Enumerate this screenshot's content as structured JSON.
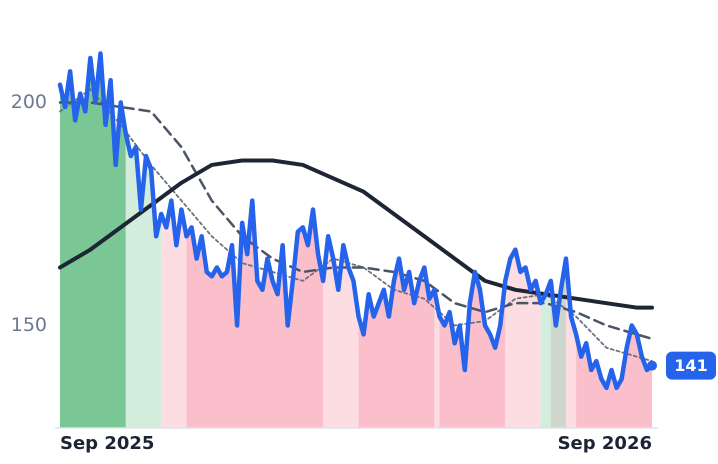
{
  "chart_data": {
    "type": "line",
    "x": [
      0,
      1,
      2,
      3,
      4,
      5,
      6,
      7,
      8,
      9,
      10,
      11,
      12,
      13,
      14,
      15,
      16,
      17,
      18,
      19,
      20,
      21,
      22,
      23,
      24,
      25,
      26,
      27,
      28,
      29,
      30,
      31,
      32,
      33,
      34,
      35,
      36,
      37,
      38,
      39,
      40,
      41,
      42,
      43,
      44,
      45,
      46,
      47,
      48,
      49,
      50,
      51,
      52,
      53,
      54,
      55,
      56,
      57,
      58,
      59,
      60,
      61,
      62,
      63,
      64,
      65,
      66,
      67,
      68,
      69,
      70,
      71,
      72,
      73,
      74,
      75,
      76,
      77,
      78,
      79,
      80,
      81,
      82,
      83,
      84,
      85,
      86,
      87,
      88,
      89,
      90,
      91,
      92,
      93,
      94,
      95,
      96,
      97,
      98,
      99,
      100,
      101,
      102,
      103,
      104,
      105,
      106,
      107,
      108,
      109,
      110,
      111,
      112,
      113,
      114,
      115,
      116,
      117
    ],
    "series": [
      {
        "color": "#2563eb",
        "style": "solid",
        "width": 4.5,
        "values": [
          204,
          199,
          207,
          196,
          202,
          198,
          210,
          200,
          211,
          195,
          205,
          186,
          200,
          193,
          188,
          190,
          176,
          188,
          185,
          170,
          175,
          172,
          178,
          168,
          176,
          170,
          172,
          165,
          170,
          162,
          161,
          163,
          161,
          162,
          168,
          150,
          173,
          166,
          178,
          160,
          158,
          165,
          160,
          157,
          168,
          150,
          160,
          171,
          172,
          168,
          176,
          166,
          160,
          170,
          165,
          158,
          168,
          163,
          160,
          152,
          148,
          157,
          152,
          155,
          158,
          152,
          160,
          165,
          158,
          162,
          155,
          160,
          163,
          156,
          158,
          152,
          150,
          153,
          146,
          150,
          140,
          155,
          162,
          158,
          150,
          148,
          145,
          150,
          160,
          165,
          167,
          162,
          163,
          158,
          160,
          155,
          157,
          160,
          150,
          158,
          165,
          152,
          148,
          143,
          146,
          140,
          142,
          138,
          136,
          140,
          136,
          138,
          145,
          150,
          148,
          143,
          140,
          141
        ],
        "value_labels": {
          "117": "141"
        }
      },
      {
        "color": "#1e2535",
        "style": "solid",
        "width": 4,
        "x": [
          0,
          6,
          12,
          18,
          24,
          30,
          36,
          42,
          48,
          54,
          60,
          66,
          72,
          78,
          84,
          90,
          96,
          102,
          108,
          114,
          117
        ],
        "values": [
          163,
          167,
          172,
          177,
          182,
          186,
          187,
          187,
          186,
          183,
          180,
          175,
          170,
          165,
          160,
          158,
          157,
          156,
          155,
          154,
          154
        ]
      },
      {
        "color": "#4b5565",
        "style": "dashed",
        "width": 2.5,
        "x": [
          0,
          6,
          12,
          18,
          24,
          30,
          36,
          42,
          48,
          54,
          60,
          66,
          72,
          78,
          84,
          90,
          96,
          102,
          108,
          114,
          117
        ],
        "values": [
          200,
          200,
          199,
          198,
          190,
          178,
          170,
          165,
          162,
          163,
          163,
          162,
          160,
          155,
          153,
          155,
          155,
          153,
          150,
          148,
          147
        ]
      },
      {
        "color": "#6b7280",
        "style": "dotted",
        "width": 1.8,
        "x": [
          0,
          6,
          12,
          18,
          24,
          30,
          36,
          42,
          48,
          54,
          60,
          66,
          72,
          78,
          84,
          90,
          96,
          102,
          108,
          114,
          117
        ],
        "values": [
          198,
          203,
          195,
          186,
          178,
          170,
          164,
          162,
          160,
          165,
          163,
          158,
          156,
          150,
          151,
          156,
          157,
          152,
          145,
          143,
          142
        ]
      }
    ],
    "bands": [
      {
        "x0": 0,
        "x1": 13,
        "color": "#6cc08a"
      },
      {
        "x0": 13,
        "x1": 20,
        "color": "#cdebd8"
      },
      {
        "x0": 20,
        "x1": 25,
        "color": "#fcd9df"
      },
      {
        "x0": 25,
        "x1": 52,
        "color": "#f9b8c4"
      },
      {
        "x0": 52,
        "x1": 59,
        "color": "#fcd9df"
      },
      {
        "x0": 59,
        "x1": 74,
        "color": "#f9b8c4"
      },
      {
        "x0": 74,
        "x1": 75,
        "color": "#fcd9df"
      },
      {
        "x0": 75,
        "x1": 88,
        "color": "#f9b8c4"
      },
      {
        "x0": 88,
        "x1": 95,
        "color": "#fcd9df"
      },
      {
        "x0": 95,
        "x1": 97,
        "color": "#cdebd8"
      },
      {
        "x0": 97,
        "x1": 100,
        "color": "#c9d3c6"
      },
      {
        "x0": 100,
        "x1": 102,
        "color": "#fcd9df"
      },
      {
        "x0": 102,
        "x1": 117,
        "color": "#f9b8c4"
      }
    ],
    "xlim": [
      0,
      117
    ],
    "xticks": [
      {
        "value": 0,
        "label": "Sep 2025"
      },
      {
        "value": 117,
        "label": "Sep 2026"
      }
    ],
    "ylim": [
      127,
      223
    ],
    "yticks": [
      150,
      200
    ]
  }
}
